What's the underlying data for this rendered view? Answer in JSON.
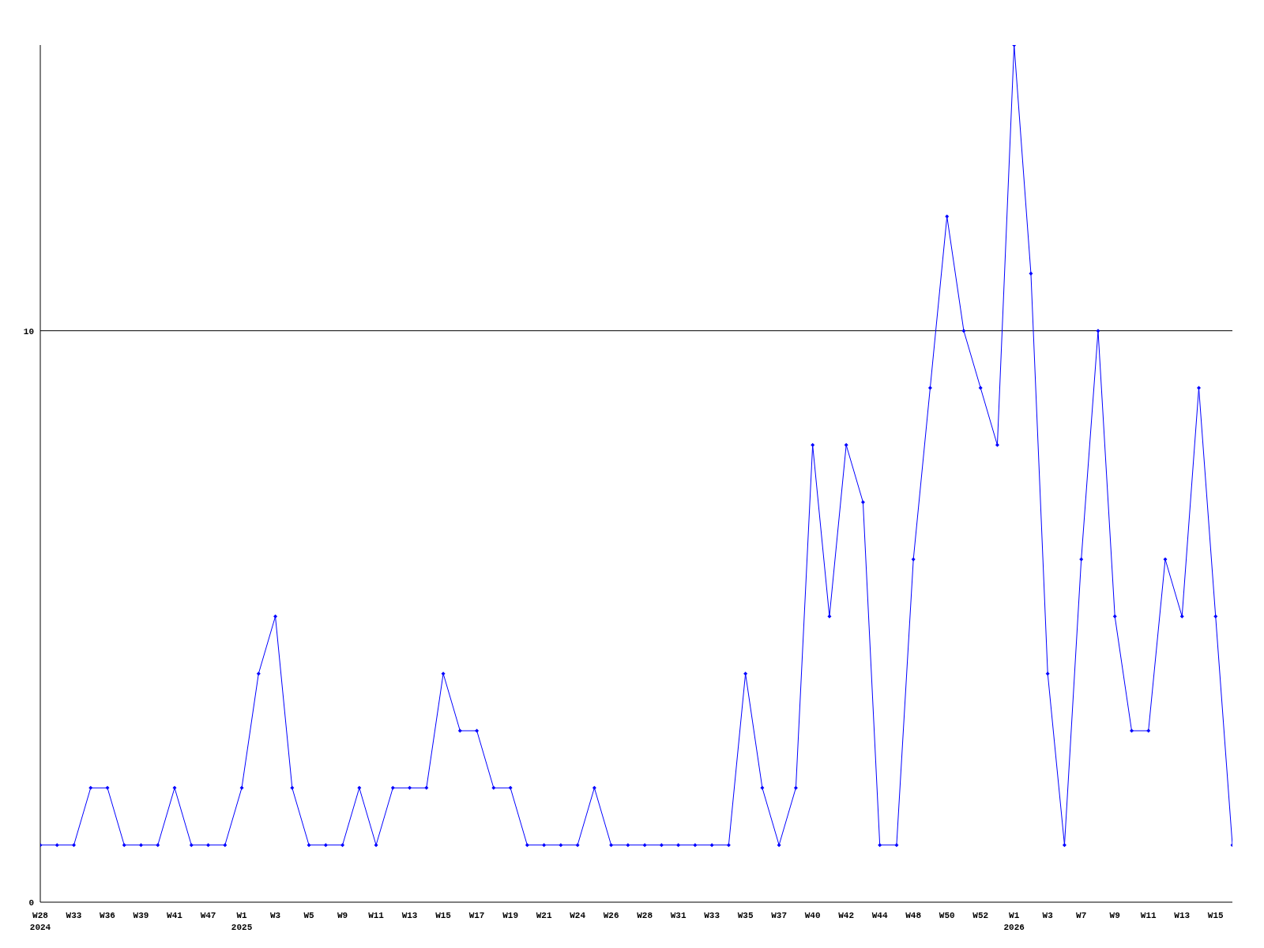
{
  "chart_data": {
    "type": "line",
    "categories": [
      "W28\n2024",
      null,
      "W33",
      null,
      "W36",
      null,
      "W39",
      null,
      "W41",
      null,
      "W47",
      null,
      "W1\n2025",
      null,
      "W3",
      null,
      "W5",
      null,
      "W9",
      null,
      "W11",
      null,
      "W13",
      null,
      "W15",
      null,
      "W17",
      null,
      "W19",
      null,
      "W21",
      null,
      "W24",
      null,
      "W26",
      null,
      "W28",
      null,
      "W31",
      null,
      "W33",
      null,
      "W35",
      null,
      "W37",
      null,
      "W40",
      null,
      "W42",
      null,
      "W44",
      null,
      "W48",
      null,
      "W50",
      null,
      "W52",
      null,
      "W1\n2026",
      null,
      "W3",
      null,
      "W7",
      null,
      "W9",
      null,
      "W11",
      null,
      "W13",
      null,
      "W15",
      null
    ],
    "series": [
      {
        "color": "#0000ff",
        "values": [
          1,
          1,
          1,
          2,
          2,
          1,
          1,
          1,
          2,
          1,
          1,
          1,
          2,
          4,
          5,
          2,
          1,
          1,
          1,
          2,
          1,
          2,
          2,
          2,
          4,
          3,
          3,
          2,
          2,
          1,
          1,
          1,
          1,
          2,
          1,
          1,
          1,
          1,
          1,
          1,
          1,
          1,
          4,
          2,
          1,
          2,
          8,
          5,
          8,
          7,
          1,
          1,
          6,
          9,
          12,
          10,
          9,
          8,
          15,
          11,
          4,
          1,
          6,
          10,
          5,
          3,
          3,
          6,
          5,
          9,
          5,
          1
        ]
      }
    ],
    "ylim": [
      0,
      15
    ],
    "yticks": [
      0,
      10
    ],
    "grid": "y",
    "marker": "diamond",
    "line_style": "solid"
  }
}
